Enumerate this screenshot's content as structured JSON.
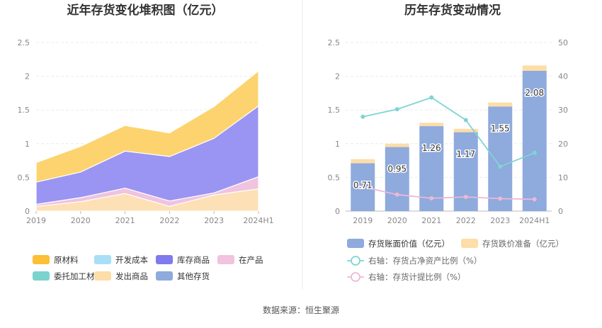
{
  "source_label": "数据来源：恒生聚源",
  "chart_data": [
    {
      "type": "area",
      "stacked": true,
      "title": "近年存货变化堆积图（亿元）",
      "categories": [
        "2019",
        "2020",
        "2021",
        "2022",
        "2023",
        "2024H1"
      ],
      "ylim": [
        0,
        2.5
      ],
      "yticks": [
        "0",
        "0.5",
        "1",
        "1.5",
        "2",
        "2.5"
      ],
      "grid": true,
      "legend_position": "bottom",
      "series": [
        {
          "name": "发出商品",
          "color": "#FDE0B5",
          "values": [
            0.07,
            0.14,
            0.26,
            0.07,
            0.24,
            0.33
          ]
        },
        {
          "name": "在产品",
          "color": "#F0C3DF",
          "values": [
            0.03,
            0.06,
            0.08,
            0.08,
            0.03,
            0.18
          ]
        },
        {
          "name": "库存商品",
          "color": "#9A95F2",
          "values": [
            0.33,
            0.38,
            0.55,
            0.66,
            0.81,
            1.05
          ]
        },
        {
          "name": "原材料",
          "color": "#FCD36E",
          "values": [
            0.29,
            0.38,
            0.38,
            0.35,
            0.47,
            0.52
          ]
        },
        {
          "name": "开发成本",
          "color": "#A9DEF7",
          "values": [
            0,
            0,
            0,
            0,
            0,
            0
          ]
        },
        {
          "name": "委托加工材料",
          "color": "#86D9D5",
          "values": [
            0,
            0,
            0,
            0,
            0,
            0
          ]
        },
        {
          "name": "其他存货",
          "color": "#8FAADC",
          "values": [
            0,
            0,
            0,
            0,
            0,
            0
          ]
        }
      ],
      "legend": [
        {
          "name": "原材料",
          "color": "#FCBF36"
        },
        {
          "name": "开发成本",
          "color": "#A9DEF7"
        },
        {
          "name": "库存商品",
          "color": "#7F7AEE"
        },
        {
          "name": "在产品",
          "color": "#F0C3DF"
        },
        {
          "name": "委托加工材料",
          "color": "#7BD3CE"
        },
        {
          "name": "发出商品",
          "color": "#FDDDA8"
        },
        {
          "name": "其他存货",
          "color": "#8FAADC"
        }
      ]
    },
    {
      "type": "bar",
      "title": "历年存货变动情况",
      "categories": [
        "2019",
        "2020",
        "2021",
        "2022",
        "2023",
        "2024H1"
      ],
      "ylim": [
        0,
        2.5
      ],
      "yticks": [
        "0",
        "0.5",
        "1",
        "1.5",
        "2",
        "2.5"
      ],
      "y2lim": [
        0,
        50
      ],
      "y2ticks": [
        "0",
        "10",
        "20",
        "30",
        "40",
        "50"
      ],
      "grid": true,
      "legend_position": "bottom",
      "series": [
        {
          "name": "存货账面价值（亿元）",
          "color": "#8FAADC",
          "values": [
            0.71,
            0.95,
            1.26,
            1.17,
            1.55,
            2.08
          ],
          "labels": [
            "0.71",
            "0.95",
            "1.26",
            "1.17",
            "1.55",
            "2.08"
          ]
        },
        {
          "name": "存货跌价准备（亿元）",
          "color": "#FDDDA8",
          "values": [
            0.06,
            0.05,
            0.05,
            0.05,
            0.06,
            0.08
          ]
        },
        {
          "name": "右轴：存货占净资产比例（%）",
          "color": "#7FD4D4",
          "axis": "right",
          "values": [
            28,
            30.2,
            33.7,
            27,
            13.2,
            17.3
          ]
        },
        {
          "name": "右轴：存货计提比例（%）",
          "color": "#EBB8D6",
          "axis": "right",
          "values": [
            7.2,
            4.9,
            3.8,
            4.2,
            3.7,
            3.5
          ]
        }
      ]
    }
  ]
}
